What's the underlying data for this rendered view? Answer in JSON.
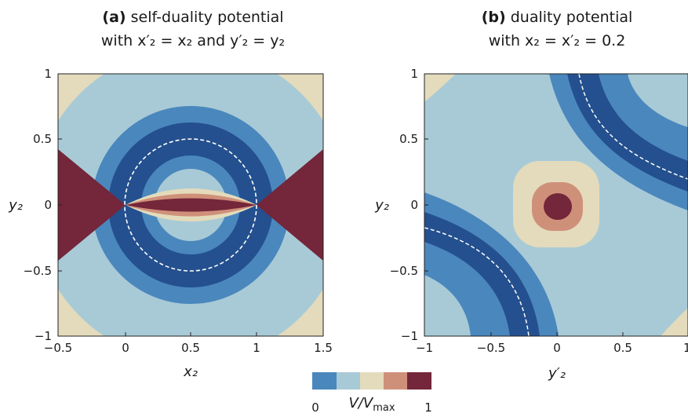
{
  "chart_data": [
    {
      "type": "heatmap",
      "title_bold": "(a)",
      "title_line1": "self-duality potential",
      "title_line2": "with x′₂ = x₂ and y′₂ = y₂",
      "xlabel": "x₂",
      "ylabel": "y₂",
      "xlim": [
        -0.5,
        1.5
      ],
      "ylim": [
        -1,
        1
      ],
      "xticks": [
        "−0.5",
        "0",
        "0.5",
        "1",
        "1.5"
      ],
      "xtick_values": [
        -0.5,
        0,
        0.5,
        1,
        1.5
      ],
      "yticks": [
        "−1",
        "−0.5",
        "0",
        "0.5",
        "1"
      ],
      "ytick_values": [
        -1,
        -0.5,
        0,
        0.5,
        1
      ],
      "dashed_contour": "circle centre (0.5, 0), radius 0.5"
    },
    {
      "type": "heatmap",
      "title_bold": "(b)",
      "title_line1": "duality potential",
      "title_line2": "with x₂ = x′₂ = 0.2",
      "xlabel": "y′₂",
      "ylabel": "y₂",
      "xlim": [
        -1,
        1
      ],
      "ylim": [
        -1,
        1
      ],
      "xticks": [
        "−1",
        "−0.5",
        "0",
        "0.5",
        "1"
      ],
      "xtick_values": [
        -1,
        -0.5,
        0,
        0.5,
        1
      ],
      "yticks": [
        "−1",
        "−0.5",
        "0",
        "0.5",
        "1"
      ],
      "ytick_values": [
        -1,
        -0.5,
        0,
        0.5,
        1
      ]
    }
  ],
  "colorbar": {
    "label": "V/V",
    "label_sub": "max",
    "min_label": "0",
    "max_label": "1",
    "colors": [
      "#4a87bd",
      "#a8cad6",
      "#e3dbbc",
      "#cf907a",
      "#74263a"
    ]
  },
  "palette": {
    "dark_blue": "#24508f",
    "mid_blue": "#4a87bd",
    "light_blue": "#a8cad6",
    "beige": "#e3dbbc",
    "salmon": "#cf907a",
    "maroon": "#74263a"
  }
}
